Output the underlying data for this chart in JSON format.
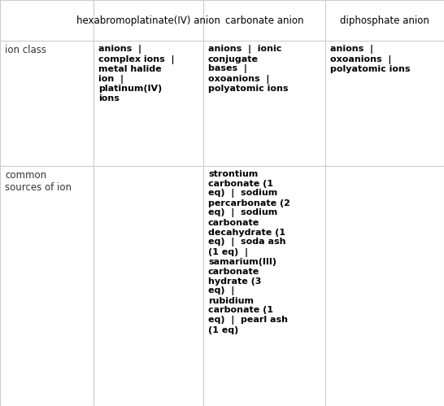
{
  "col_headers": [
    "",
    "hexabromoplatinate(IV) anion",
    "carbonate anion",
    "diphosphate anion"
  ],
  "row_headers": [
    "ion class",
    "common\nsources of ion"
  ],
  "cell_data": {
    "ion_class_hex": "anions  |\ncomplex ions  |\nmetal halide\nion  |\nplatinum(IV)\nions",
    "ion_class_carb": "anions  |  ionic\nconjugate\nbases  |\noxoanions  |\npolyatomic ions",
    "ion_class_diph": "anions  |\noxoanions  |\npolyatomic ions",
    "sources_hex": "",
    "sources_carb": "strontium\ncarbonate (1\neq)  |  sodium\npercarbonate (2\neq)  |  sodium\ncarbonate\ndecahydrate (1\neq)  |  soda ash\n(1 eq)  |\nsamarium(III)\ncarbonate\nhydrate (3\neq)  |\nrubidium\ncarbonate (1\neq)  |  pearl ash\n(1 eq)",
    "sources_diph": ""
  },
  "bg_color": "#ffffff",
  "header_bg": "#ffffff",
  "grid_color": "#cccccc",
  "text_color": "#333333",
  "gray_color": "#999999",
  "bold_color": "#000000"
}
